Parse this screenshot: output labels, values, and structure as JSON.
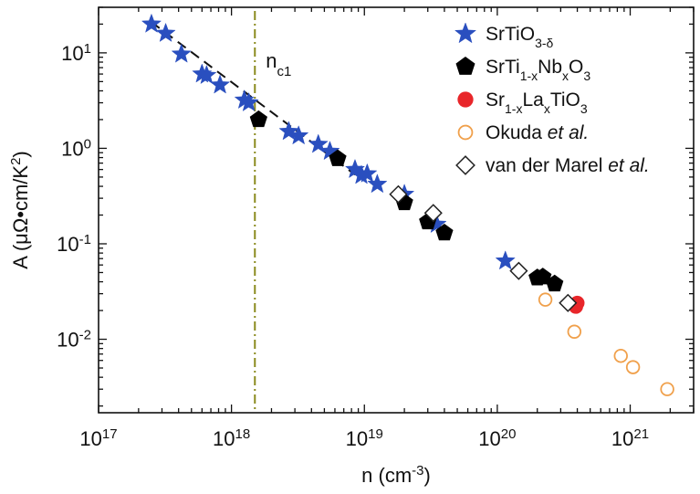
{
  "chart_data": {
    "type": "scatter",
    "title": "",
    "x_scale": "log",
    "y_scale": "log",
    "xlim": [
      1e+17,
      3e+21
    ],
    "ylim": [
      0.0017,
      30
    ],
    "xlabel": {
      "base": "n (cm",
      "sup": "-3",
      "end": ")"
    },
    "ylabel": {
      "prefix": "A (",
      "unit": "μΩ•cm/K",
      "sup": "2",
      "end": ")"
    },
    "x_ticks": [
      {
        "value": 1e+17,
        "base": "10",
        "exp": "17"
      },
      {
        "value": 1e+18,
        "base": "10",
        "exp": "18"
      },
      {
        "value": 1e+19,
        "base": "10",
        "exp": "19"
      },
      {
        "value": 1e+20,
        "base": "10",
        "exp": "20"
      },
      {
        "value": 1e+21,
        "base": "10",
        "exp": "21"
      }
    ],
    "y_ticks": [
      {
        "value": 10,
        "base": "10",
        "exp": "1"
      },
      {
        "value": 1,
        "base": "10",
        "exp": "0"
      },
      {
        "value": 0.1,
        "base": "10",
        "exp": "-1"
      },
      {
        "value": 0.01,
        "base": "10",
        "exp": "-2"
      }
    ],
    "grid": false,
    "legend_position": "top-right",
    "annotation": {
      "text": "n",
      "sub": "c1",
      "x": 1.5e+18,
      "color": "#8a8a1e"
    },
    "dashed_fit": {
      "x": [
        2.5e+17,
        8.5e+18
      ],
      "y": [
        21,
        0.53
      ]
    },
    "series": [
      {
        "name": "SrTiO3-δ",
        "legend": [
          {
            "t": "SrTiO"
          },
          {
            "t": "3-δ",
            "s": "sub"
          }
        ],
        "marker": "star",
        "color": "#2a4fbf",
        "x": [
          2.5e+17,
          3.2e+17,
          4.2e+17,
          6e+17,
          6.5e+17,
          8.2e+17,
          1.25e+18,
          1.35e+18,
          2.7e+18,
          3.2e+18,
          4.5e+18,
          5.5e+18,
          8.5e+18,
          9.5e+18,
          1.05e+19,
          1.25e+19,
          2e+19,
          3.5e+19,
          1.15e+20
        ],
        "y": [
          20,
          16,
          9.7,
          6,
          5.8,
          4.6,
          3.2,
          3.0,
          1.5,
          1.35,
          1.1,
          0.93,
          0.6,
          0.52,
          0.54,
          0.42,
          0.33,
          0.16,
          0.066
        ]
      },
      {
        "name": "SrTi1-xNbxO3",
        "legend": [
          {
            "t": "SrTi"
          },
          {
            "t": "1-x",
            "s": "sub"
          },
          {
            "t": "Nb"
          },
          {
            "t": "x",
            "s": "sub"
          },
          {
            "t": "O"
          },
          {
            "t": "3",
            "s": "sub"
          }
        ],
        "marker": "pentagon",
        "color": "#000000",
        "x": [
          1.6e+18,
          6.3e+18,
          2e+19,
          3e+19,
          4e+19,
          2e+20,
          2.2e+20,
          2.7e+20
        ],
        "y": [
          2.0,
          0.78,
          0.27,
          0.17,
          0.13,
          0.044,
          0.045,
          0.038
        ]
      },
      {
        "name": "Sr1-xLaxTiO3",
        "legend": [
          {
            "t": "Sr"
          },
          {
            "t": "1-x",
            "s": "sub"
          },
          {
            "t": "La"
          },
          {
            "t": "x",
            "s": "sub"
          },
          {
            "t": "TiO"
          },
          {
            "t": "3",
            "s": "sub"
          }
        ],
        "marker": "circle-filled",
        "color": "#e8262a",
        "x": [
          3.9e+20,
          4e+20
        ],
        "y": [
          0.022,
          0.024
        ]
      },
      {
        "name": "Okuda et al.",
        "legend": [
          {
            "t": "Okuda "
          },
          {
            "t": "et al.",
            "s": "it"
          }
        ],
        "marker": "circle-open",
        "color": "#f0a04b",
        "x": [
          2.3e+20,
          3.8e+20,
          8.5e+20,
          1.05e+21,
          1.9e+21
        ],
        "y": [
          0.026,
          0.012,
          0.0067,
          0.0051,
          0.003
        ]
      },
      {
        "name": "van der Marel et al.",
        "legend": [
          {
            "t": " van der Marel "
          },
          {
            "t": "et al.",
            "s": "it"
          }
        ],
        "marker": "diamond-open",
        "color": "#222222",
        "x": [
          1.8e+19,
          3.3e+19,
          1.45e+20,
          3.4e+20
        ],
        "y": [
          0.33,
          0.21,
          0.052,
          0.024
        ]
      }
    ]
  }
}
